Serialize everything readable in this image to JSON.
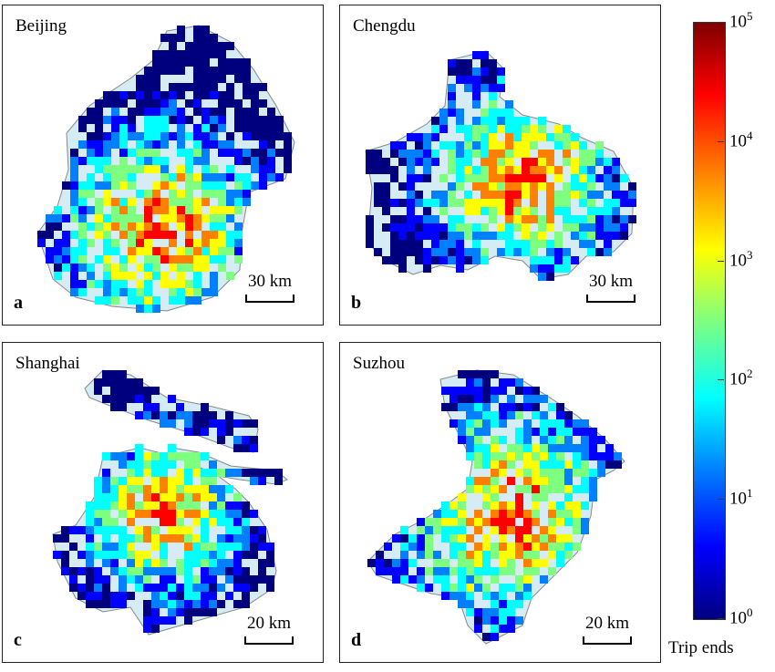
{
  "panels": [
    {
      "id": "a",
      "city": "Beijing",
      "letter": "a",
      "scale": "30 km"
    },
    {
      "id": "b",
      "city": "Chengdu",
      "letter": "b",
      "scale": "30 km"
    },
    {
      "id": "c",
      "city": "Shanghai",
      "letter": "c",
      "scale": "20 km"
    },
    {
      "id": "d",
      "city": "Suzhou",
      "letter": "d",
      "scale": "20 km"
    }
  ],
  "colorbar": {
    "label": "Trip ends",
    "scale": "log",
    "range": [
      1,
      100000
    ],
    "ticks": [
      {
        "base": "10",
        "exp": "0"
      },
      {
        "base": "10",
        "exp": "1"
      },
      {
        "base": "10",
        "exp": "2"
      },
      {
        "base": "10",
        "exp": "3"
      },
      {
        "base": "10",
        "exp": "4"
      },
      {
        "base": "10",
        "exp": "5"
      }
    ],
    "colors": [
      "#00007f",
      "#0000ff",
      "#007fff",
      "#00ffff",
      "#7fff7f",
      "#ffff00",
      "#ff7f00",
      "#ff0000",
      "#7f0000"
    ]
  }
}
